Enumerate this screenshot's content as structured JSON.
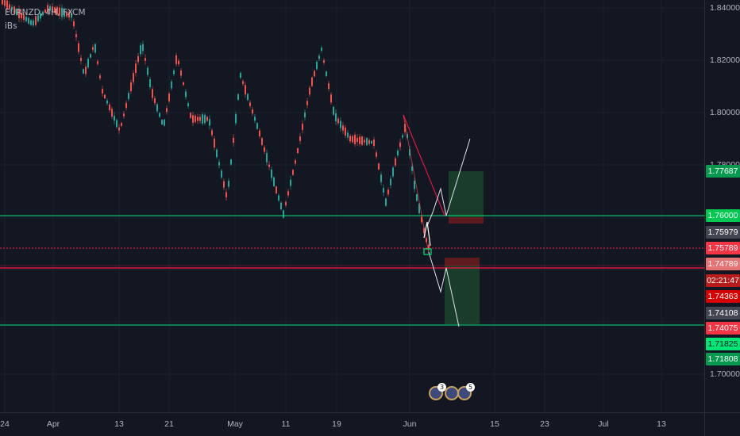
{
  "legend": {
    "symbol": "EURNZD, 4H, FXCM",
    "indicator": "iBs"
  },
  "price_axis": {
    "ticks": [
      "1.84000",
      "1.82000",
      "1.80000",
      "1.78000",
      "1.70000"
    ]
  },
  "time_axis": {
    "ticks": [
      "24",
      "Apr",
      "13",
      "21",
      "May",
      "11",
      "19",
      "Jun",
      "15",
      "23",
      "Jul",
      "13"
    ]
  },
  "price_tags": [
    {
      "text": "1.77687",
      "color": "#089950"
    },
    {
      "text": "1.76000",
      "color": "#00c853"
    },
    {
      "text": "1.75979",
      "color": "#434651"
    },
    {
      "text": "1.75789",
      "color": "#f23645"
    },
    {
      "text": "1.74789",
      "color": "#e57373"
    },
    {
      "text": "02:21:47",
      "color": "#b71c1c"
    },
    {
      "text": "1.74363",
      "color": "#d50000"
    },
    {
      "text": "1.74108",
      "color": "#434651"
    },
    {
      "text": "1.74075",
      "color": "#f23645"
    },
    {
      "text": "1.71825",
      "color": "#00e676"
    },
    {
      "text": "1.71808",
      "color": "#089950"
    }
  ],
  "event_badges": [
    {
      "count": "3",
      "icon": "economic-event-icon"
    },
    {
      "count": "",
      "icon": "economic-event-icon"
    },
    {
      "count": "5",
      "icon": "economic-event-icon"
    }
  ],
  "colors": {
    "background": "#131722",
    "up_candle": "#26a69a",
    "down_candle": "#ef5350",
    "support_line": "#00e676",
    "resistance_line": "#ff1744"
  }
}
